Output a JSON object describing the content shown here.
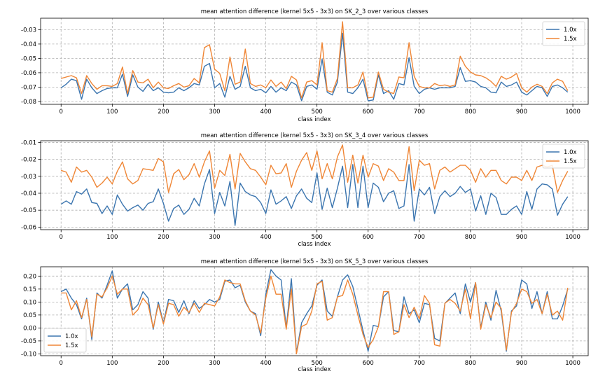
{
  "chart_data": [
    {
      "type": "line",
      "title": "mean attention difference (kernel 5x5 - 3x3) on SK_2_3 over various classes",
      "xlabel": "class index",
      "ylabel": "",
      "xlim": [
        -40,
        1030
      ],
      "ylim": [
        -0.082,
        -0.022
      ],
      "xticks": [
        0,
        100,
        200,
        300,
        400,
        500,
        600,
        700,
        800,
        900,
        1000
      ],
      "yticks": [
        -0.03,
        -0.04,
        -0.05,
        -0.06,
        -0.07,
        -0.08
      ],
      "ytick_labels": [
        "-0.03",
        "-0.04",
        "-0.05",
        "-0.06",
        "-0.07",
        "-0.08"
      ],
      "legend_position": "upper right",
      "x": [
        0,
        10,
        20,
        30,
        40,
        50,
        60,
        70,
        80,
        90,
        100,
        110,
        120,
        130,
        140,
        150,
        160,
        170,
        180,
        190,
        200,
        210,
        220,
        230,
        240,
        250,
        260,
        270,
        280,
        290,
        300,
        310,
        320,
        330,
        340,
        350,
        360,
        370,
        380,
        390,
        400,
        410,
        420,
        430,
        440,
        450,
        460,
        470,
        480,
        490,
        500,
        510,
        520,
        530,
        540,
        550,
        560,
        570,
        580,
        590,
        600,
        610,
        620,
        630,
        640,
        650,
        660,
        670,
        680,
        690,
        700,
        710,
        720,
        730,
        740,
        750,
        760,
        770,
        780,
        790,
        800,
        810,
        820,
        830,
        840,
        850,
        860,
        870,
        880,
        890,
        900,
        910,
        920,
        930,
        940,
        950,
        960,
        970,
        980,
        990
      ],
      "series": [
        {
          "name": "1.0x",
          "color": "#3b75af",
          "values": [
            -0.0705,
            -0.068,
            -0.0645,
            -0.0655,
            -0.0785,
            -0.0645,
            -0.0705,
            -0.0745,
            -0.0725,
            -0.071,
            -0.0705,
            -0.0705,
            -0.061,
            -0.0765,
            -0.0615,
            -0.07,
            -0.073,
            -0.068,
            -0.0725,
            -0.0705,
            -0.0735,
            -0.074,
            -0.0735,
            -0.0705,
            -0.0725,
            -0.0705,
            -0.0675,
            -0.0685,
            -0.0555,
            -0.0535,
            -0.0705,
            -0.0675,
            -0.077,
            -0.0625,
            -0.0715,
            -0.0695,
            -0.0555,
            -0.0705,
            -0.0725,
            -0.0715,
            -0.074,
            -0.0695,
            -0.0735,
            -0.0705,
            -0.0725,
            -0.0665,
            -0.0685,
            -0.0795,
            -0.0695,
            -0.0685,
            -0.0715,
            -0.0505,
            -0.0735,
            -0.0755,
            -0.0665,
            -0.0325,
            -0.0735,
            -0.0745,
            -0.0705,
            -0.0645,
            -0.0795,
            -0.079,
            -0.0615,
            -0.0745,
            -0.0725,
            -0.0785,
            -0.0675,
            -0.0685,
            -0.0495,
            -0.0695,
            -0.0745,
            -0.0715,
            -0.0705,
            -0.0715,
            -0.0705,
            -0.0705,
            -0.0705,
            -0.0695,
            -0.0565,
            -0.066,
            -0.0655,
            -0.0665,
            -0.0695,
            -0.0705,
            -0.0735,
            -0.074,
            -0.0665,
            -0.0695,
            -0.0685,
            -0.0665,
            -0.0735,
            -0.0755,
            -0.0725,
            -0.0695,
            -0.0705,
            -0.0765,
            -0.0695,
            -0.0685,
            -0.0705,
            -0.0735
          ]
        },
        {
          "name": "1.5x",
          "color": "#ef8636",
          "values": [
            -0.064,
            -0.063,
            -0.062,
            -0.0635,
            -0.0745,
            -0.062,
            -0.0675,
            -0.0715,
            -0.069,
            -0.069,
            -0.0695,
            -0.0675,
            -0.056,
            -0.0745,
            -0.0585,
            -0.0665,
            -0.067,
            -0.0645,
            -0.0705,
            -0.0665,
            -0.0705,
            -0.071,
            -0.069,
            -0.0675,
            -0.07,
            -0.069,
            -0.064,
            -0.067,
            -0.0425,
            -0.0405,
            -0.0575,
            -0.0605,
            -0.0725,
            -0.049,
            -0.068,
            -0.0665,
            -0.0435,
            -0.0675,
            -0.0695,
            -0.0685,
            -0.0705,
            -0.065,
            -0.0695,
            -0.0665,
            -0.071,
            -0.0625,
            -0.065,
            -0.0775,
            -0.0665,
            -0.0655,
            -0.0685,
            -0.039,
            -0.0725,
            -0.0735,
            -0.064,
            -0.0245,
            -0.0705,
            -0.0705,
            -0.0685,
            -0.0595,
            -0.0775,
            -0.077,
            -0.0595,
            -0.0715,
            -0.0735,
            -0.0745,
            -0.063,
            -0.0635,
            -0.039,
            -0.0625,
            -0.0695,
            -0.0705,
            -0.0705,
            -0.0675,
            -0.069,
            -0.0685,
            -0.0695,
            -0.0685,
            -0.0485,
            -0.0555,
            -0.0595,
            -0.0615,
            -0.062,
            -0.0635,
            -0.066,
            -0.0695,
            -0.0625,
            -0.0645,
            -0.063,
            -0.0605,
            -0.0705,
            -0.0735,
            -0.07,
            -0.068,
            -0.0695,
            -0.0745,
            -0.067,
            -0.0645,
            -0.066,
            -0.0725
          ]
        }
      ]
    },
    {
      "type": "line",
      "title": "mean attention difference (kernel 5x5 - 3x3) on SK_3_4 over various classes",
      "xlabel": "class index",
      "ylabel": "",
      "xlim": [
        -40,
        1030
      ],
      "ylim": [
        -0.0615,
        -0.009
      ],
      "xticks": [
        0,
        100,
        200,
        300,
        400,
        500,
        600,
        700,
        800,
        900,
        1000
      ],
      "yticks": [
        -0.01,
        -0.02,
        -0.03,
        -0.04,
        -0.05,
        -0.06
      ],
      "ytick_labels": [
        "-0.01",
        "-0.02",
        "-0.03",
        "-0.04",
        "-0.05",
        "-0.06"
      ],
      "legend_position": "upper right",
      "x": [
        0,
        10,
        20,
        30,
        40,
        50,
        60,
        70,
        80,
        90,
        100,
        110,
        120,
        130,
        140,
        150,
        160,
        170,
        180,
        190,
        200,
        210,
        220,
        230,
        240,
        250,
        260,
        270,
        280,
        290,
        300,
        310,
        320,
        330,
        340,
        350,
        360,
        370,
        380,
        390,
        400,
        410,
        420,
        430,
        440,
        450,
        460,
        470,
        480,
        490,
        500,
        510,
        520,
        530,
        540,
        550,
        560,
        570,
        580,
        590,
        600,
        610,
        620,
        630,
        640,
        650,
        660,
        670,
        680,
        690,
        700,
        710,
        720,
        730,
        740,
        750,
        760,
        770,
        780,
        790,
        800,
        810,
        820,
        830,
        840,
        850,
        860,
        870,
        880,
        890,
        900,
        910,
        920,
        930,
        940,
        950,
        960,
        970,
        980,
        990
      ],
      "series": [
        {
          "name": "1.0x",
          "color": "#3b75af",
          "values": [
            -0.0465,
            -0.0445,
            -0.0465,
            -0.039,
            -0.0405,
            -0.0375,
            -0.0455,
            -0.046,
            -0.052,
            -0.0475,
            -0.0525,
            -0.041,
            -0.0465,
            -0.0505,
            -0.0485,
            -0.047,
            -0.05,
            -0.046,
            -0.045,
            -0.0375,
            -0.046,
            -0.0565,
            -0.049,
            -0.047,
            -0.0525,
            -0.0495,
            -0.043,
            -0.0475,
            -0.0345,
            -0.026,
            -0.052,
            -0.0395,
            -0.0475,
            -0.033,
            -0.059,
            -0.034,
            -0.039,
            -0.041,
            -0.042,
            -0.0455,
            -0.052,
            -0.038,
            -0.0465,
            -0.0445,
            -0.042,
            -0.049,
            -0.0415,
            -0.0375,
            -0.043,
            -0.0455,
            -0.028,
            -0.0495,
            -0.037,
            -0.0485,
            -0.037,
            -0.024,
            -0.0485,
            -0.023,
            -0.0485,
            -0.024,
            -0.0485,
            -0.034,
            -0.0365,
            -0.045,
            -0.04,
            -0.0385,
            -0.049,
            -0.0475,
            -0.023,
            -0.0565,
            -0.0375,
            -0.041,
            -0.0365,
            -0.052,
            -0.042,
            -0.0385,
            -0.042,
            -0.04,
            -0.036,
            -0.0395,
            -0.0375,
            -0.0505,
            -0.0415,
            -0.0525,
            -0.04,
            -0.0425,
            -0.0525,
            -0.0525,
            -0.0495,
            -0.0475,
            -0.0525,
            -0.039,
            -0.0495,
            -0.0375,
            -0.0345,
            -0.035,
            -0.0375,
            -0.053,
            -0.0465,
            -0.042
          ]
        },
        {
          "name": "1.5x",
          "color": "#ef8636",
          "values": [
            -0.0265,
            -0.0275,
            -0.0335,
            -0.0245,
            -0.0275,
            -0.0265,
            -0.0305,
            -0.0365,
            -0.034,
            -0.0305,
            -0.0345,
            -0.027,
            -0.0215,
            -0.0315,
            -0.0345,
            -0.0325,
            -0.0255,
            -0.026,
            -0.0265,
            -0.0195,
            -0.0215,
            -0.0395,
            -0.0285,
            -0.026,
            -0.032,
            -0.029,
            -0.0225,
            -0.0305,
            -0.0215,
            -0.015,
            -0.037,
            -0.0265,
            -0.0295,
            -0.017,
            -0.0375,
            -0.0165,
            -0.0215,
            -0.0255,
            -0.0265,
            -0.0305,
            -0.035,
            -0.0235,
            -0.0285,
            -0.028,
            -0.0225,
            -0.0365,
            -0.027,
            -0.0205,
            -0.016,
            -0.0265,
            -0.015,
            -0.0315,
            -0.0225,
            -0.0315,
            -0.0185,
            -0.0115,
            -0.0335,
            -0.0175,
            -0.034,
            -0.0175,
            -0.0305,
            -0.0225,
            -0.024,
            -0.0325,
            -0.0255,
            -0.0275,
            -0.0325,
            -0.0325,
            -0.0125,
            -0.0385,
            -0.0205,
            -0.0235,
            -0.0225,
            -0.0375,
            -0.0265,
            -0.0245,
            -0.0275,
            -0.0255,
            -0.0235,
            -0.0235,
            -0.0265,
            -0.0335,
            -0.0255,
            -0.0305,
            -0.0265,
            -0.0265,
            -0.0325,
            -0.0345,
            -0.0305,
            -0.0305,
            -0.0325,
            -0.0265,
            -0.0325,
            -0.0245,
            -0.0235,
            -0.0245,
            -0.0235,
            -0.0395,
            -0.0325,
            -0.027
          ]
        }
      ]
    },
    {
      "type": "line",
      "title": "mean attention difference (kernel 5x5 - 3x3) on SK_5_3 over various classes",
      "xlabel": "class index",
      "ylabel": "",
      "xlim": [
        -40,
        1030
      ],
      "ylim": [
        -0.107,
        0.236
      ],
      "xticks": [
        0,
        100,
        200,
        300,
        400,
        500,
        600,
        700,
        800,
        900,
        1000
      ],
      "yticks": [
        0.2,
        0.15,
        0.1,
        0.05,
        0.0,
        -0.05,
        -0.1
      ],
      "ytick_labels": [
        "0.20",
        "0.15",
        "0.10",
        "0.05",
        "0.00",
        "-0.05",
        "-0.10"
      ],
      "legend_position": "lower left",
      "x": [
        0,
        10,
        20,
        30,
        40,
        50,
        60,
        70,
        80,
        90,
        100,
        110,
        120,
        130,
        140,
        150,
        160,
        170,
        180,
        190,
        200,
        210,
        220,
        230,
        240,
        250,
        260,
        270,
        280,
        290,
        300,
        310,
        320,
        330,
        340,
        350,
        360,
        370,
        380,
        390,
        400,
        410,
        420,
        430,
        440,
        450,
        460,
        470,
        480,
        490,
        500,
        510,
        520,
        530,
        540,
        550,
        560,
        570,
        580,
        590,
        600,
        610,
        620,
        630,
        640,
        650,
        660,
        670,
        680,
        690,
        700,
        710,
        720,
        730,
        740,
        750,
        760,
        770,
        780,
        790,
        800,
        810,
        820,
        830,
        840,
        850,
        860,
        870,
        880,
        890,
        900,
        910,
        920,
        930,
        940,
        950,
        960,
        970,
        980,
        990
      ],
      "series": [
        {
          "name": "1.0x",
          "color": "#3b75af",
          "values": [
            0.14,
            0.15,
            0.115,
            0.09,
            0.035,
            0.115,
            -0.045,
            0.135,
            0.115,
            0.165,
            0.22,
            0.115,
            0.15,
            0.17,
            0.07,
            0.09,
            0.14,
            0.115,
            -0.005,
            0.1,
            0.02,
            0.11,
            0.105,
            0.06,
            0.105,
            0.055,
            0.105,
            0.075,
            0.09,
            0.11,
            0.1,
            0.11,
            0.18,
            0.185,
            0.155,
            0.165,
            0.1,
            0.065,
            0.055,
            -0.03,
            0.13,
            0.225,
            0.2,
            0.185,
            0.0,
            0.19,
            -0.095,
            0.02,
            0.055,
            0.085,
            0.165,
            0.185,
            0.065,
            0.045,
            0.12,
            0.185,
            0.205,
            0.16,
            0.075,
            -0.01,
            -0.09,
            0.01,
            0.005,
            0.12,
            0.14,
            -0.01,
            -0.015,
            0.12,
            0.055,
            0.07,
            0.02,
            0.095,
            0.09,
            -0.04,
            -0.05,
            0.095,
            0.115,
            0.135,
            0.055,
            0.17,
            0.1,
            0.175,
            0.0,
            0.1,
            0.03,
            0.145,
            0.065,
            -0.09,
            0.065,
            0.085,
            0.185,
            0.17,
            0.075,
            0.14,
            0.055,
            0.14,
            0.035,
            0.035,
            0.085,
            0.15
          ]
        },
        {
          "name": "1.5x",
          "color": "#ef8636",
          "values": [
            0.135,
            0.135,
            0.07,
            0.105,
            0.04,
            0.11,
            -0.035,
            0.13,
            0.12,
            0.155,
            0.2,
            0.13,
            0.15,
            0.15,
            0.05,
            0.07,
            0.115,
            0.09,
            0.0,
            0.09,
            0.015,
            0.095,
            0.09,
            0.045,
            0.08,
            0.06,
            0.095,
            0.06,
            0.095,
            0.09,
            0.085,
            0.12,
            0.185,
            0.175,
            0.17,
            0.17,
            0.105,
            0.065,
            0.05,
            -0.02,
            0.115,
            0.2,
            0.13,
            0.13,
            -0.005,
            0.15,
            -0.1,
            0.005,
            0.015,
            0.065,
            0.17,
            0.18,
            0.03,
            0.04,
            0.12,
            0.125,
            0.185,
            0.13,
            0.05,
            -0.025,
            -0.075,
            -0.045,
            0.005,
            0.14,
            0.14,
            -0.025,
            -0.015,
            0.09,
            0.04,
            0.08,
            0.035,
            0.125,
            0.095,
            -0.065,
            -0.07,
            0.095,
            0.11,
            0.095,
            0.065,
            0.15,
            0.035,
            0.175,
            -0.005,
            0.09,
            0.04,
            0.1,
            0.075,
            -0.085,
            0.06,
            0.095,
            0.15,
            0.14,
            0.095,
            0.11,
            0.055,
            0.13,
            0.05,
            0.065,
            0.03,
            0.155
          ]
        }
      ]
    }
  ]
}
